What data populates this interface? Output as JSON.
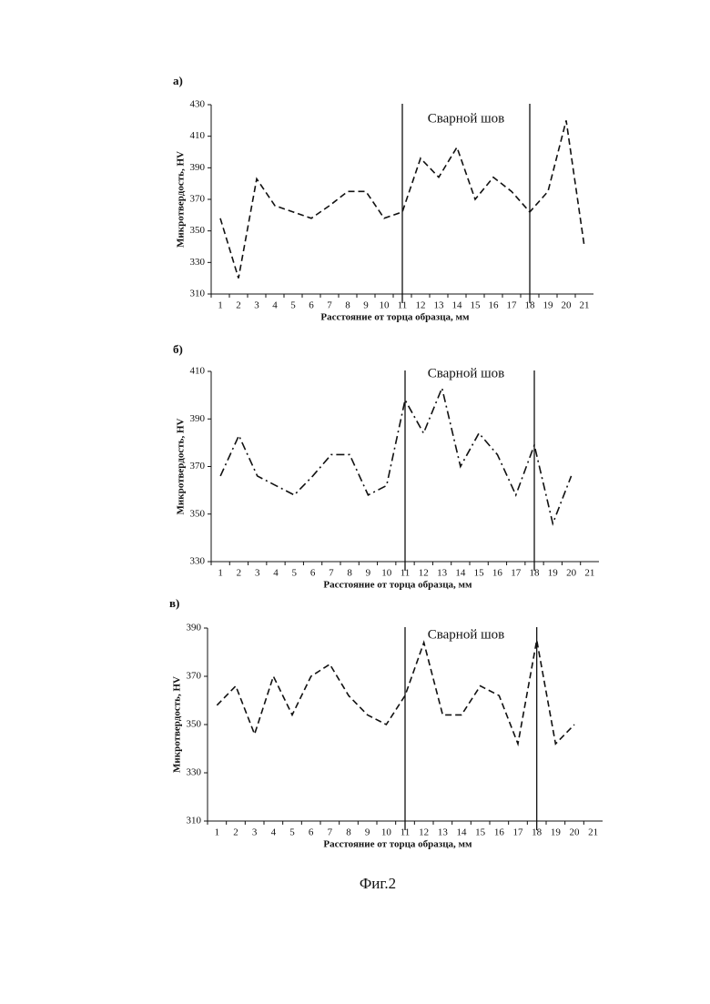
{
  "caption": "Фиг.2",
  "chart_data": [
    {
      "type": "line",
      "panel": "а)",
      "annotation": "Сварной шов",
      "ylabel": "Микротвердость, HV",
      "xlabel": "Расстояние от торца образца, мм",
      "x": [
        1,
        2,
        3,
        4,
        5,
        6,
        7,
        8,
        9,
        10,
        11,
        12,
        13,
        14,
        15,
        16,
        17,
        18,
        19,
        20,
        21
      ],
      "values": [
        358,
        320,
        383,
        366,
        362,
        358,
        366,
        375,
        375,
        358,
        362,
        396,
        384,
        403,
        370,
        384,
        375,
        362,
        375,
        420,
        340
      ],
      "xlim": [
        0.5,
        21.5
      ],
      "xticks": [
        1,
        2,
        3,
        4,
        5,
        6,
        7,
        8,
        9,
        10,
        11,
        12,
        13,
        14,
        15,
        16,
        17,
        18,
        19,
        20,
        21
      ],
      "ylim": [
        310,
        430
      ],
      "yticks": [
        310,
        330,
        350,
        370,
        390,
        410,
        430
      ],
      "weld_lines": [
        11,
        18
      ],
      "line_style": "dashed",
      "color": "#111111"
    },
    {
      "type": "line",
      "panel": "б)",
      "annotation": "Сварной шов",
      "ylabel": "Микротвердость, HV",
      "xlabel": "Расстояние от торца образца, мм",
      "x": [
        1,
        2,
        3,
        4,
        5,
        6,
        7,
        8,
        9,
        10,
        11,
        12,
        13,
        14,
        15,
        16,
        17,
        18,
        19,
        20,
        21
      ],
      "values": [
        366,
        383,
        366,
        362,
        358,
        366,
        375,
        375,
        358,
        362,
        398,
        384,
        403,
        370,
        384,
        375,
        358,
        379,
        346,
        366,
        null
      ],
      "xlim": [
        0.5,
        21.5
      ],
      "xticks": [
        1,
        2,
        3,
        4,
        5,
        6,
        7,
        8,
        9,
        10,
        11,
        12,
        13,
        14,
        15,
        16,
        17,
        18,
        19,
        20,
        21
      ],
      "ylim": [
        330,
        410
      ],
      "yticks": [
        330,
        350,
        370,
        390,
        410
      ],
      "weld_lines": [
        11,
        18
      ],
      "line_style": "dash-dot",
      "color": "#111111"
    },
    {
      "type": "line",
      "panel": "в)",
      "annotation": "Сварной шов",
      "ylabel": "Микротвердость, HV",
      "xlabel": "Расстояние от торца образца, мм",
      "x": [
        1,
        2,
        3,
        4,
        5,
        6,
        7,
        8,
        9,
        10,
        11,
        12,
        13,
        14,
        15,
        16,
        17,
        18,
        19,
        20,
        21
      ],
      "values": [
        358,
        366,
        346,
        370,
        354,
        370,
        375,
        362,
        354,
        350,
        362,
        384,
        354,
        354,
        366,
        362,
        342,
        385,
        342,
        350,
        null
      ],
      "xlim": [
        0.5,
        21.5
      ],
      "xticks": [
        1,
        2,
        3,
        4,
        5,
        6,
        7,
        8,
        9,
        10,
        11,
        12,
        13,
        14,
        15,
        16,
        17,
        18,
        19,
        20,
        21
      ],
      "ylim": [
        310,
        390
      ],
      "yticks": [
        310,
        330,
        350,
        370,
        390
      ],
      "weld_lines": [
        11,
        18
      ],
      "line_style": "dashed",
      "color": "#111111"
    }
  ]
}
